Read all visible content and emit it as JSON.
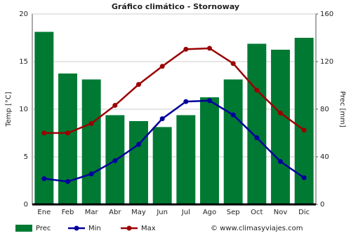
{
  "chart_data": {
    "type": "climate",
    "title": "Gráfico climático - Stornoway",
    "categories": [
      "Ene",
      "Feb",
      "Mar",
      "Abr",
      "May",
      "Jun",
      "Jul",
      "Ago",
      "Sep",
      "Oct",
      "Nov",
      "Dic"
    ],
    "y_label": "Temp [°C]",
    "y2_label": "Prec [mm]",
    "ylim": [
      0,
      20
    ],
    "yticks": [
      0,
      5,
      10,
      15,
      20
    ],
    "y2lim": [
      0,
      160
    ],
    "y2ticks": [
      0,
      40,
      80,
      120,
      160
    ],
    "grid": true,
    "series": [
      {
        "name": "Prec",
        "type": "bar",
        "axis": "y2",
        "color": "#007a33",
        "values": [
          145,
          110,
          105,
          75,
          70,
          65,
          75,
          90,
          105,
          135,
          130,
          140
        ]
      },
      {
        "name": "Min",
        "type": "line",
        "color": "#00009a",
        "values": [
          2.7,
          2.4,
          3.2,
          4.6,
          6.3,
          9.0,
          10.8,
          10.9,
          9.4,
          7.0,
          4.5,
          2.8
        ]
      },
      {
        "name": "Max",
        "type": "line",
        "color": "#9a0000",
        "values": [
          7.5,
          7.5,
          8.5,
          10.4,
          12.6,
          14.5,
          16.3,
          16.4,
          14.8,
          12.0,
          9.6,
          7.8
        ]
      }
    ],
    "source": "© www.climasyviajes.com"
  }
}
